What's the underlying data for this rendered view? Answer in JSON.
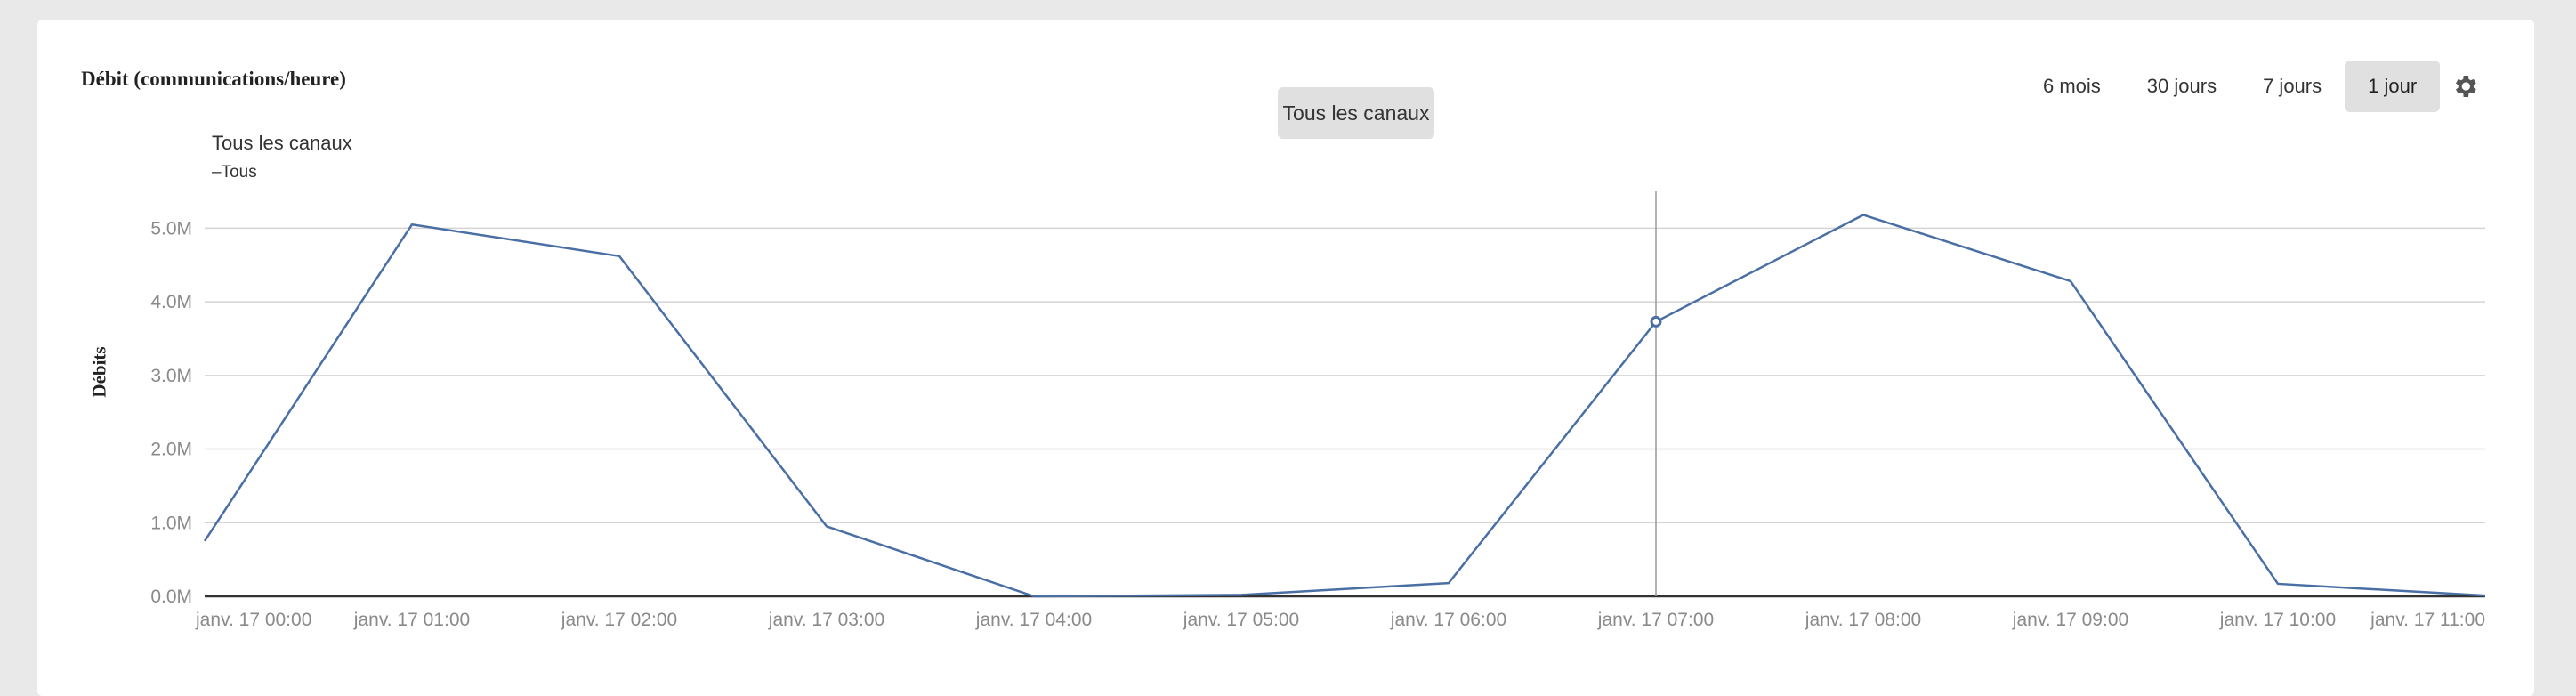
{
  "title": "Débit (communications/heure)",
  "range_buttons": [
    {
      "label": "6 mois",
      "active": false
    },
    {
      "label": "30 jours",
      "active": false
    },
    {
      "label": "7 jours",
      "active": false
    },
    {
      "label": "1 jour",
      "active": true
    }
  ],
  "settings_icon": "gear-icon",
  "tooltip_label": "Tous les canaux",
  "legend": {
    "title": "Tous les canaux",
    "item": "–Tous"
  },
  "colors": {
    "line": "#4a6fa5",
    "grid": "#d4d4d4",
    "axis": "#333333",
    "active_button": "#e0e0e0"
  },
  "chart_data": {
    "type": "line",
    "title": "Débit (communications/heure)",
    "ylabel": "Débits",
    "xlabel": "",
    "x": [
      "janv. 17 00:00",
      "janv. 17 01:00",
      "janv. 17 02:00",
      "janv. 17 03:00",
      "janv. 17 04:00",
      "janv. 17 05:00",
      "janv. 17 06:00",
      "janv. 17 07:00",
      "janv. 17 08:00",
      "janv. 17 09:00",
      "janv. 17 10:00",
      "janv. 17 11:00"
    ],
    "y_ticks": [
      "0.0M",
      "1.0M",
      "2.0M",
      "3.0M",
      "4.0M",
      "5.0M"
    ],
    "ylim": [
      0,
      5.5
    ],
    "grid": true,
    "legend_position": "top-left",
    "series": [
      {
        "name": "Tous",
        "values": [
          0.75,
          5.05,
          4.62,
          0.95,
          0.0,
          0.02,
          0.18,
          3.73,
          5.18,
          4.28,
          0.17,
          0.01
        ]
      }
    ],
    "hover": {
      "x": "janv. 17 07:00",
      "value": 3.73
    }
  }
}
